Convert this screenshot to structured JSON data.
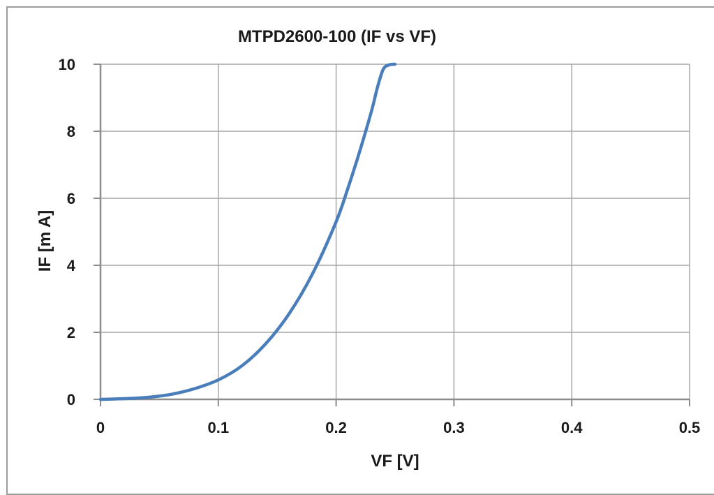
{
  "chart_data": {
    "type": "line",
    "title": "MTPD2600-100 (IF vs VF)",
    "xlabel": "VF [V]",
    "ylabel": "IF [m A]",
    "xlim": [
      0,
      0.5
    ],
    "ylim": [
      0,
      10
    ],
    "x_ticks": [
      "0",
      "0.1",
      "0.2",
      "0.3",
      "0.4",
      "0.5"
    ],
    "y_ticks": [
      "0",
      "2",
      "4",
      "6",
      "8",
      "10"
    ],
    "grid": true,
    "legend": "none",
    "series": [
      {
        "color": "#4a7ebb",
        "x": [
          0,
          0.02,
          0.04,
          0.06,
          0.08,
          0.1,
          0.12,
          0.14,
          0.16,
          0.18,
          0.2,
          0.21,
          0.22,
          0.23,
          0.235,
          0.24,
          0.245,
          0.25
        ],
        "y": [
          0,
          0.02,
          0.06,
          0.15,
          0.32,
          0.58,
          1.0,
          1.65,
          2.55,
          3.75,
          5.3,
          6.3,
          7.4,
          8.6,
          9.3,
          9.85,
          9.98,
          10.0
        ]
      }
    ]
  }
}
